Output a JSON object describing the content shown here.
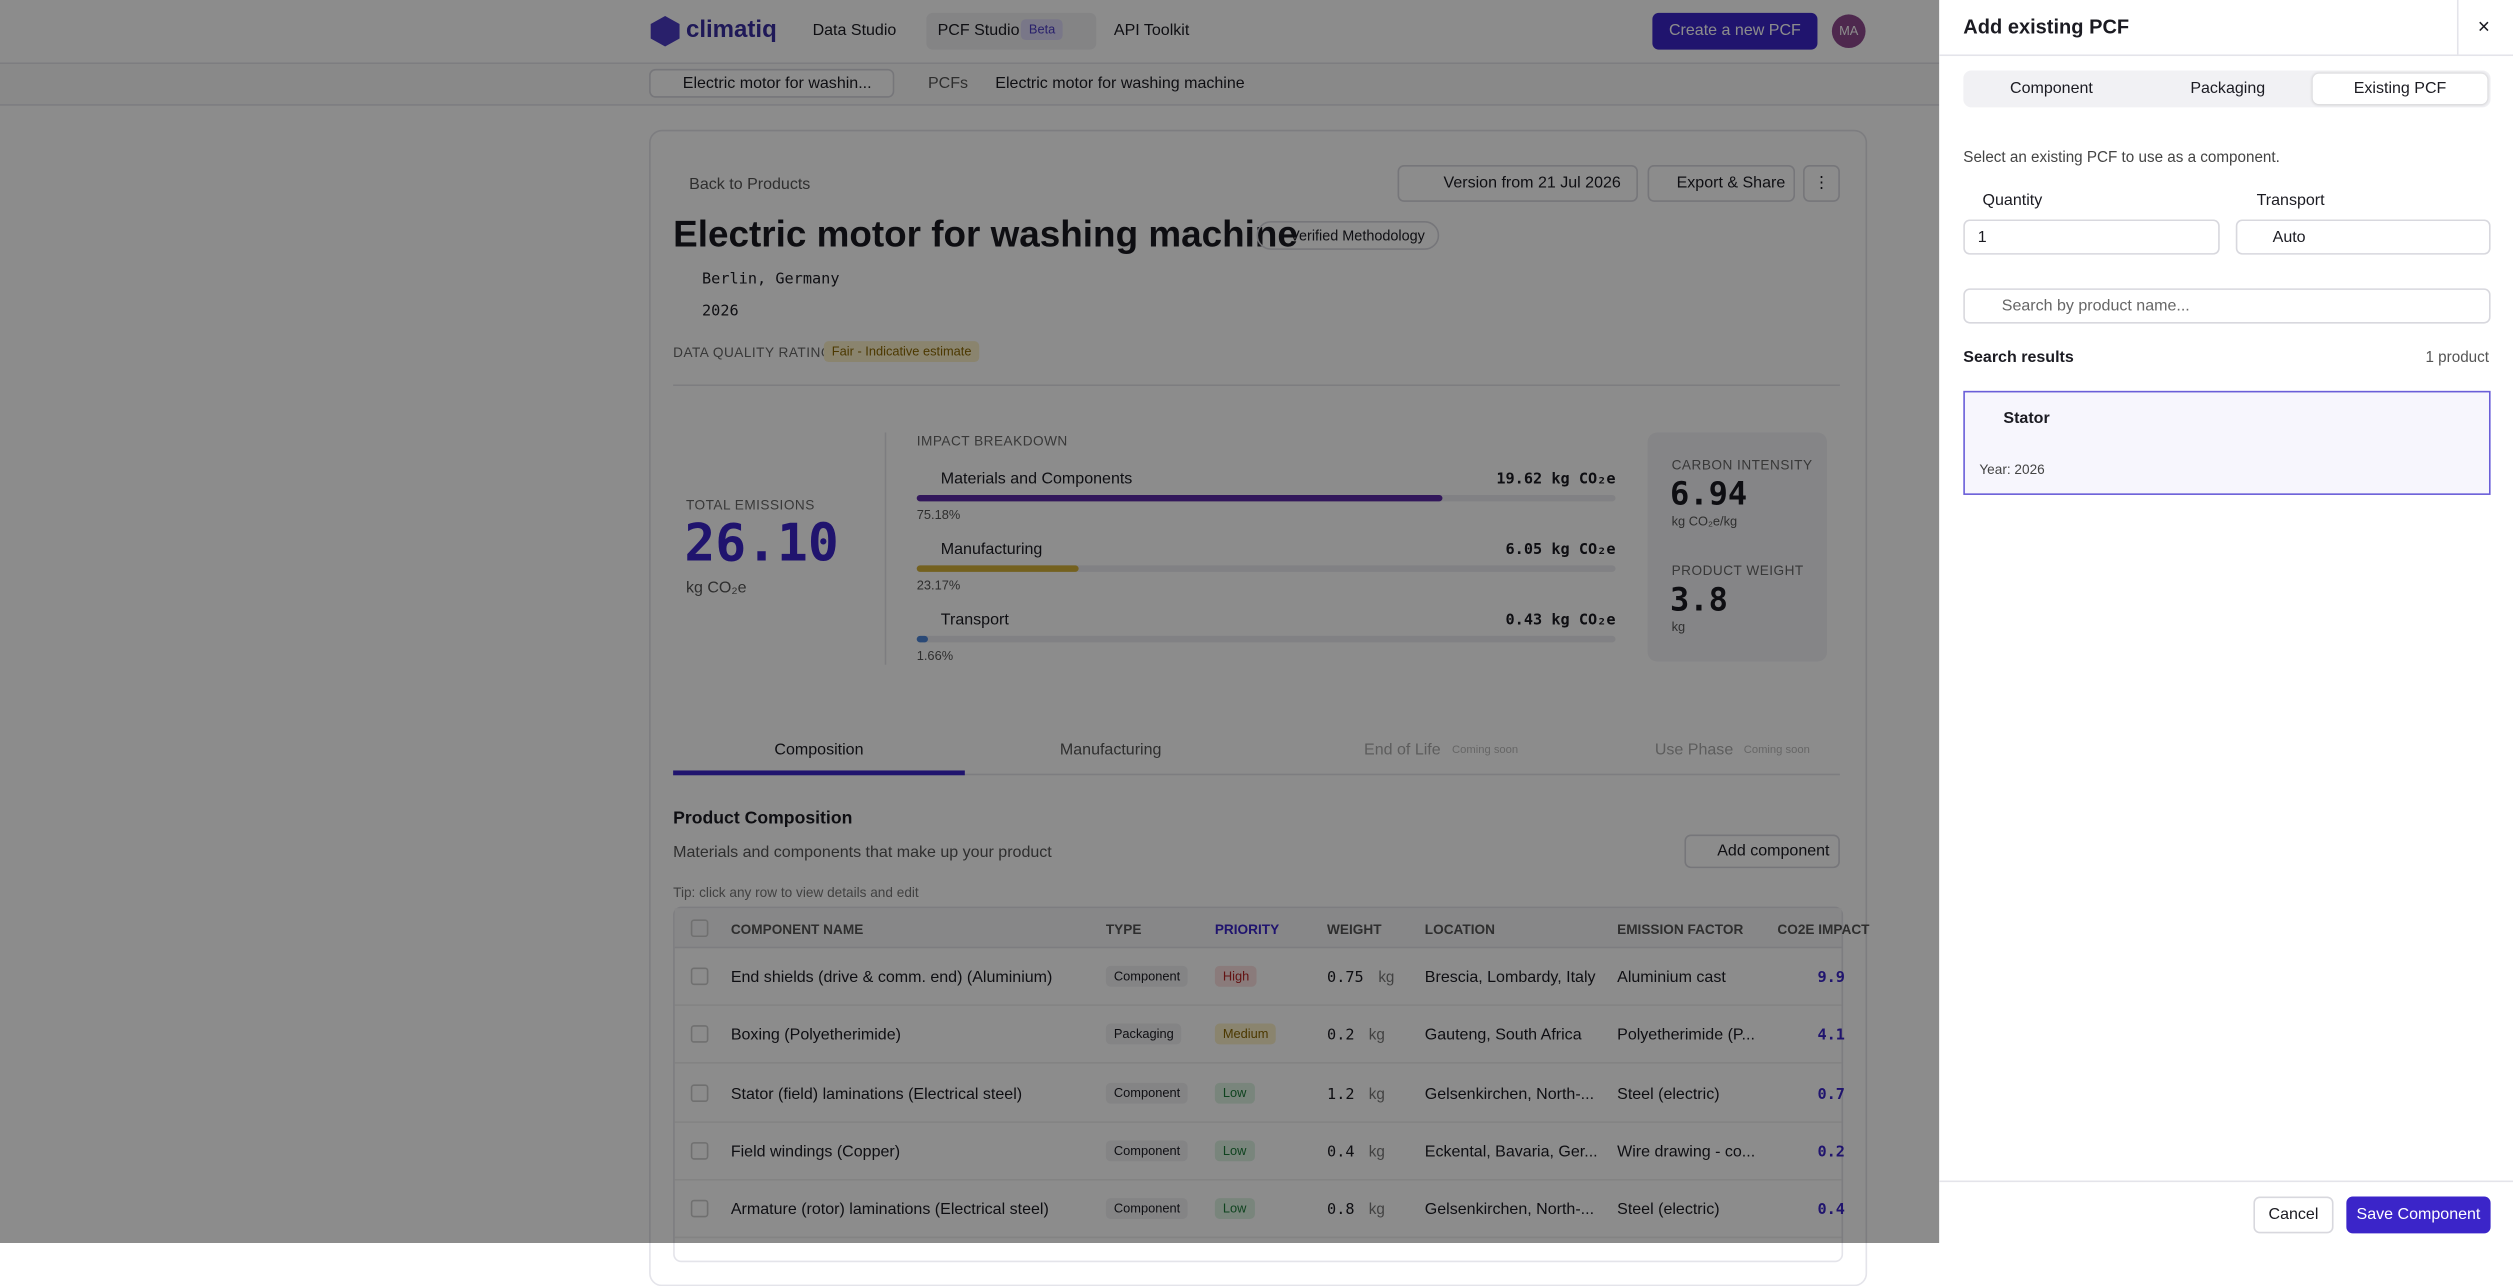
{
  "nav": {
    "brand": "climatiq",
    "items": [
      "Data Studio",
      "PCF Studio",
      "API Toolkit"
    ],
    "beta": "Beta",
    "cta": "Create a new PCF",
    "avatar": "MA"
  },
  "breadcrumb": {
    "product": "Electric motor for washin...",
    "section": "PCFs",
    "current": "Electric motor for washing machine"
  },
  "product": {
    "back": "Back to Products",
    "version": "Version from 21 Jul 2026",
    "export": "Export & Share",
    "title": "Electric motor for washing machine",
    "badge": "Verified Methodology",
    "location": "Berlin, Germany",
    "year": "2026",
    "dq_label": "DATA QUALITY RATING",
    "dq_value": "Fair - Indicative estimate"
  },
  "emissions": {
    "label": "TOTAL EMISSIONS",
    "value": "26.10",
    "unit": "kg CO₂e",
    "breakdown_title": "IMPACT BREAKDOWN",
    "breakdown": [
      {
        "name": "Materials and Components",
        "value": "19.62 kg CO₂e",
        "share": 75.18,
        "share_label": "75.18%",
        "color": "#5b2aa6"
      },
      {
        "name": "Manufacturing",
        "value": "6.05 kg CO₂e",
        "share": 23.17,
        "share_label": "23.17%",
        "color": "#d4b13a"
      },
      {
        "name": "Transport",
        "value": "0.43 kg CO₂e",
        "share": 1.66,
        "share_label": "1.66%",
        "color": "#4e86d8"
      }
    ],
    "intensity_label": "CARBON INTENSITY",
    "intensity": "6.94",
    "intensity_unit": "kg CO₂e/kg",
    "weight_label": "PRODUCT WEIGHT",
    "weight": "3.8",
    "weight_unit": "kg"
  },
  "tabs": [
    {
      "label": "Composition"
    },
    {
      "label": "Manufacturing"
    },
    {
      "label": "End of Life",
      "badge": "Coming soon"
    },
    {
      "label": "Use Phase",
      "badge": "Coming soon"
    }
  ],
  "composition": {
    "title": "Product Composition",
    "subtitle": "Materials and components that make up your product",
    "add": "Add component",
    "tip": "Tip: click any row to view details and edit",
    "columns": [
      "COMPONENT NAME",
      "TYPE",
      "PRIORITY",
      "WEIGHT",
      "LOCATION",
      "EMISSION FACTOR",
      "CO2E IMPACT"
    ],
    "rows": [
      [
        "End shields (drive & comm. end) (Aluminium)",
        "Component",
        "High",
        "0.75",
        "kg",
        "Brescia, Lombardy, Italy",
        "Aluminium cast",
        "9.9"
      ],
      [
        "Boxing (Polyetherimide)",
        "Packaging",
        "Medium",
        "0.2",
        "kg",
        "Gauteng, South Africa",
        "Polyetherimide (P...",
        "4.1"
      ],
      [
        "Stator (field) laminations (Electrical steel)",
        "Component",
        "Low",
        "1.2",
        "kg",
        "Gelsenkirchen, North-...",
        "Steel (electric)",
        "0.7"
      ],
      [
        "Field windings (Copper)",
        "Component",
        "Low",
        "0.4",
        "kg",
        "Eckental, Bavaria, Ger...",
        "Wire drawing - co...",
        "0.2"
      ],
      [
        "Armature (rotor) laminations (Electrical steel)",
        "Component",
        "Low",
        "0.8",
        "kg",
        "Gelsenkirchen, North-...",
        "Steel (electric)",
        "0.4"
      ]
    ]
  },
  "panel": {
    "title": "Add existing PCF",
    "tabs": [
      "Component",
      "Packaging",
      "Existing PCF"
    ],
    "hint": "Select an existing PCF to use as a component.",
    "quantity_label": "Quantity",
    "quantity": "1",
    "transport_label": "Transport",
    "transport": "Auto",
    "search_placeholder": "Search by product name...",
    "results_label": "Search results",
    "results_count": "1 product",
    "result": {
      "name": "Stator",
      "year": "Year: 2026"
    },
    "cancel": "Cancel",
    "save": "Save Component"
  }
}
